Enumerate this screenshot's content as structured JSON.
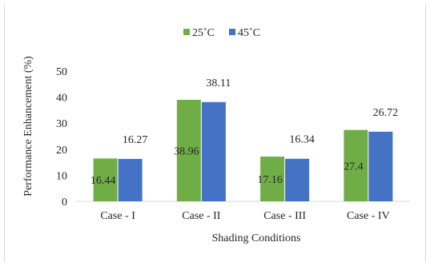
{
  "chart_data": {
    "type": "bar",
    "title": "",
    "xlabel": "Shading Conditions",
    "ylabel": "Performance Enhancement (%)",
    "categories": [
      "Case - I",
      "Case - II",
      "Case - III",
      "Case - IV"
    ],
    "series": [
      {
        "name": "25˚C",
        "color": "#70ad47",
        "values": [
          16.44,
          38.96,
          17.16,
          27.4
        ],
        "labels": [
          "16.44",
          "38.96",
          "17.16",
          "27.4"
        ]
      },
      {
        "name": "45˚C",
        "color": "#4472c4",
        "values": [
          16.27,
          38.11,
          16.34,
          26.72
        ],
        "labels": [
          "16.27",
          "38.11",
          "16.34",
          "26.72"
        ]
      }
    ],
    "ylim": [
      0,
      50
    ],
    "yticks": [
      0,
      10,
      20,
      30,
      40,
      50
    ],
    "grid": false,
    "legend_position": "top"
  }
}
